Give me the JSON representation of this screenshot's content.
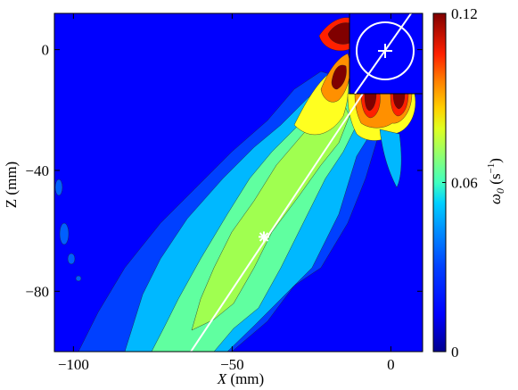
{
  "chart_data": {
    "type": "heatmap",
    "xlabel_symbol": "X",
    "xlabel_unit": "(mm)",
    "ylabel": "Z (mm)",
    "colorbar_label_symbol": "ω",
    "colorbar_label_sub": "0",
    "colorbar_label_unit_prefix": "(s",
    "colorbar_label_unit_sup": "−1",
    "colorbar_label_unit_suffix": ")",
    "xlim": [
      -106,
      10
    ],
    "ylim": [
      -100,
      12
    ],
    "clim": [
      0,
      0.12
    ],
    "x_ticks": [
      {
        "value": -100,
        "label": "−100"
      },
      {
        "value": -50,
        "label": "−50"
      },
      {
        "value": 0,
        "label": "0"
      }
    ],
    "y_ticks": [
      {
        "value": 0,
        "label": "0"
      },
      {
        "value": -40,
        "label": "−40"
      },
      {
        "value": -80,
        "label": "−80"
      }
    ],
    "colorbar_ticks": [
      {
        "value": 0,
        "label": "0"
      },
      {
        "value": 0.06,
        "label": "0.06"
      },
      {
        "value": 0.12,
        "label": "0.12"
      }
    ],
    "grid": false,
    "colormap": [
      "#00008f",
      "#0000ff",
      "#0060ff",
      "#00c0ff",
      "#40ffc0",
      "#a0ff60",
      "#ffff00",
      "#ff9000",
      "#ff2000",
      "#800000"
    ],
    "jet_axis_line": {
      "from": [
        -63,
        -100
      ],
      "to": [
        8,
        12
      ]
    },
    "jet_center_marker": {
      "x": -40,
      "y": -62
    },
    "inset_source_marker": {
      "x": 0,
      "y": 0
    },
    "inset_circle": true,
    "field_description": "vorticity magnitude of an inclined jet; low in far field, plume band along the line, peaks near the nozzle"
  }
}
